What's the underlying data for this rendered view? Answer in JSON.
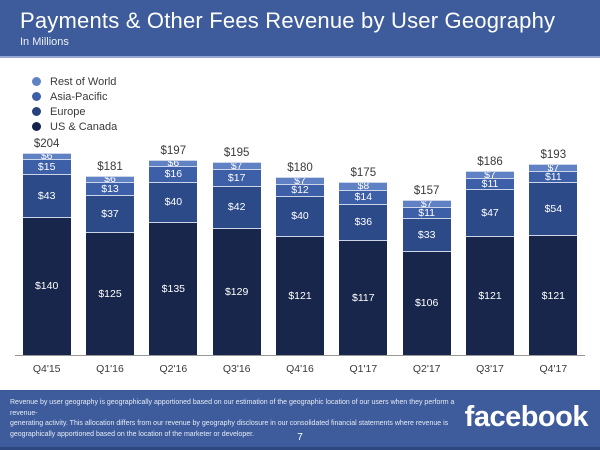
{
  "header": {
    "title": "Payments & Other Fees Revenue by User Geography",
    "subtitle": "In Millions"
  },
  "legend": [
    {
      "label": "Rest of World",
      "color": "#6181c5"
    },
    {
      "label": "Asia-Pacific",
      "color": "#3c5fa8"
    },
    {
      "label": "Europe",
      "color": "#26437d"
    },
    {
      "label": "US & Canada",
      "color": "#15244a"
    }
  ],
  "chart_data": {
    "type": "bar",
    "stacked": true,
    "title": "Payments & Other Fees Revenue by User Geography",
    "units": "In Millions",
    "value_prefix": "$",
    "categories": [
      "Q4'15",
      "Q1'16",
      "Q2'16",
      "Q3'16",
      "Q4'16",
      "Q1'17",
      "Q2'17",
      "Q3'17",
      "Q4'17"
    ],
    "series": [
      {
        "name": "US & Canada",
        "color": "#17264a",
        "values": [
          140,
          125,
          135,
          129,
          121,
          117,
          106,
          121,
          121
        ]
      },
      {
        "name": "Europe",
        "color": "#2b4a87",
        "values": [
          43,
          37,
          40,
          42,
          40,
          36,
          33,
          47,
          54
        ]
      },
      {
        "name": "Asia-Pacific",
        "color": "#3c5fa8",
        "values": [
          15,
          13,
          16,
          17,
          12,
          14,
          11,
          11,
          11
        ]
      },
      {
        "name": "Rest of World",
        "color": "#6181c5",
        "values": [
          6,
          6,
          6,
          7,
          7,
          8,
          7,
          7,
          7
        ]
      }
    ],
    "totals": [
      204,
      181,
      197,
      195,
      180,
      175,
      157,
      186,
      193
    ],
    "ylim": [
      0,
      220
    ],
    "grid": false,
    "legend_position": "top-left"
  },
  "footer": {
    "note_lines": [
      "Revenue by user geography is geographically apportioned based on our estimation of the geographic location of our users when they perform a revenue-",
      "generating activity. This allocation differs from our revenue by geography disclosure in our consolidated financial statements where revenue is",
      "geographically apportioned based on the location of the marketer or developer."
    ],
    "page_number": "7",
    "logo_text": "facebook"
  },
  "colors": {
    "band_blue": "#3e5c9c",
    "band_separator": "#93a7d0",
    "band_bottom_edge": "#2d4780",
    "text_dark": "#3a3a3a",
    "axis_line": "#999999"
  }
}
